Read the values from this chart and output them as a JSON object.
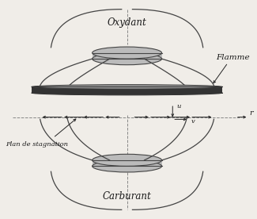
{
  "bg_color": "#f0ede8",
  "text_color": "#1a1a1a",
  "label_oxydant": "Oxydant",
  "label_carburant": "Carburant",
  "label_flamme": "Flamme",
  "label_stagnation": "Plan de stagnation",
  "label_r": "r",
  "label_u": "u",
  "label_v": "v",
  "nozzle_edge_color": "#444444",
  "nozzle_face_color": "#bbbbbb",
  "flame_color": "#333333",
  "flame_face_color": "#999999",
  "arrow_color": "#222222",
  "dashed_color": "#888888",
  "curve_color": "#444444"
}
